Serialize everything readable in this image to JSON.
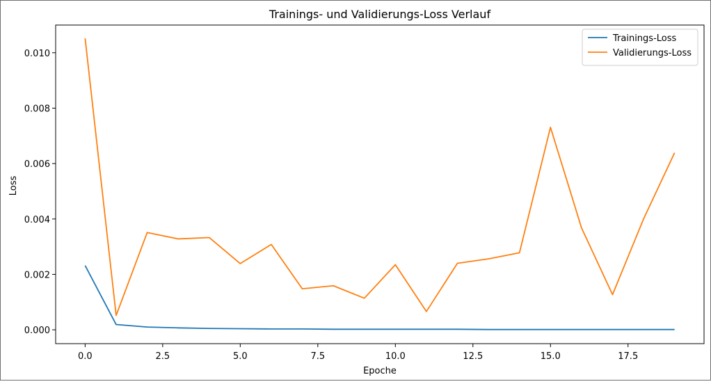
{
  "chart_data": {
    "type": "line",
    "title": "Trainings- und Validierungs-Loss Verlauf",
    "xlabel": "Epoche",
    "ylabel": "Loss",
    "xlim": [
      -0.95,
      19.95
    ],
    "ylim": [
      -0.0005,
      0.011
    ],
    "x_ticks": [
      0.0,
      2.5,
      5.0,
      7.5,
      10.0,
      12.5,
      15.0,
      17.5
    ],
    "x_tick_labels": [
      "0.0",
      "2.5",
      "5.0",
      "7.5",
      "10.0",
      "12.5",
      "15.0",
      "17.5"
    ],
    "y_ticks": [
      0.0,
      0.002,
      0.004,
      0.006,
      0.008,
      0.01
    ],
    "y_tick_labels": [
      "0.000",
      "0.002",
      "0.004",
      "0.006",
      "0.008",
      "0.010"
    ],
    "grid": false,
    "legend_position": "top-right",
    "x": [
      0,
      1,
      2,
      3,
      4,
      5,
      6,
      7,
      8,
      9,
      10,
      11,
      12,
      13,
      14,
      15,
      16,
      17,
      18,
      19
    ],
    "series": [
      {
        "name": "Trainings-Loss",
        "color": "#1f77b4",
        "values": [
          0.00232,
          0.00019,
          0.0001,
          7e-05,
          5e-05,
          4e-05,
          3e-05,
          3e-05,
          2e-05,
          2e-05,
          2e-05,
          2e-05,
          2e-05,
          1e-05,
          1e-05,
          1e-05,
          1e-05,
          1e-05,
          1e-05,
          1e-05
        ]
      },
      {
        "name": "Validierungs-Loss",
        "color": "#ff7f0e",
        "values": [
          0.01052,
          0.00052,
          0.00351,
          0.00328,
          0.00333,
          0.00239,
          0.00308,
          0.00148,
          0.00159,
          0.00114,
          0.00235,
          0.00066,
          0.0024,
          0.00256,
          0.00278,
          0.00731,
          0.00368,
          0.00127,
          0.004,
          0.00639
        ]
      }
    ]
  }
}
